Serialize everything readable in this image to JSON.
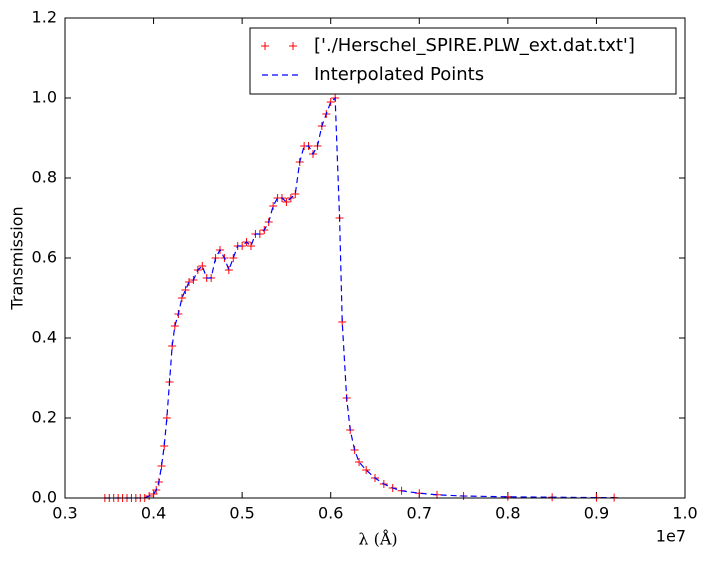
{
  "chart_data": {
    "type": "line",
    "xlabel": "λ (Å)",
    "ylabel": "Transmission",
    "x_offset_label": "1e7",
    "x": [
      0.345,
      0.35,
      0.355,
      0.36,
      0.365,
      0.37,
      0.375,
      0.38,
      0.385,
      0.39,
      0.395,
      0.4,
      0.403,
      0.406,
      0.409,
      0.412,
      0.415,
      0.418,
      0.421,
      0.424,
      0.428,
      0.432,
      0.436,
      0.44,
      0.445,
      0.45,
      0.455,
      0.46,
      0.465,
      0.47,
      0.475,
      0.48,
      0.485,
      0.49,
      0.495,
      0.5,
      0.505,
      0.51,
      0.515,
      0.52,
      0.525,
      0.53,
      0.535,
      0.54,
      0.545,
      0.55,
      0.555,
      0.56,
      0.565,
      0.57,
      0.575,
      0.58,
      0.585,
      0.59,
      0.595,
      0.6,
      0.605,
      0.61,
      0.613,
      0.618,
      0.622,
      0.627,
      0.632,
      0.64,
      0.65,
      0.66,
      0.67,
      0.68,
      0.7,
      0.72,
      0.75,
      0.8,
      0.85,
      0.9,
      0.92
    ],
    "series": [
      {
        "name": "['./Herschel_SPIRE.PLW_ext.dat.txt']",
        "color": "#ff0000",
        "marker": "+",
        "values": [
          0,
          0,
          0,
          0,
          0,
          0,
          0,
          0,
          0,
          0,
          0.005,
          0.01,
          0.02,
          0.04,
          0.08,
          0.13,
          0.2,
          0.29,
          0.38,
          0.43,
          0.46,
          0.5,
          0.52,
          0.54,
          0.545,
          0.57,
          0.58,
          0.55,
          0.55,
          0.6,
          0.62,
          0.6,
          0.57,
          0.6,
          0.63,
          0.63,
          0.64,
          0.63,
          0.66,
          0.66,
          0.67,
          0.69,
          0.73,
          0.75,
          0.75,
          0.74,
          0.75,
          0.76,
          0.84,
          0.88,
          0.88,
          0.86,
          0.88,
          0.93,
          0.96,
          0.99,
          1.0,
          0.7,
          0.44,
          0.25,
          0.17,
          0.12,
          0.09,
          0.07,
          0.05,
          0.035,
          0.025,
          0.018,
          0.012,
          0.008,
          0.005,
          0.003,
          0.002,
          0.001,
          0.001
        ]
      },
      {
        "name": "Interpolated Points",
        "color": "#0000ff",
        "marker": "dashed",
        "values": [
          0,
          0,
          0,
          0,
          0,
          0,
          0,
          0,
          0,
          0,
          0.005,
          0.01,
          0.02,
          0.04,
          0.08,
          0.13,
          0.2,
          0.29,
          0.38,
          0.43,
          0.46,
          0.5,
          0.52,
          0.54,
          0.545,
          0.57,
          0.58,
          0.55,
          0.55,
          0.6,
          0.62,
          0.6,
          0.57,
          0.6,
          0.63,
          0.63,
          0.64,
          0.63,
          0.66,
          0.66,
          0.67,
          0.69,
          0.73,
          0.75,
          0.75,
          0.74,
          0.75,
          0.76,
          0.84,
          0.88,
          0.88,
          0.86,
          0.88,
          0.93,
          0.96,
          0.99,
          1.0,
          0.7,
          0.44,
          0.25,
          0.17,
          0.12,
          0.09,
          0.07,
          0.05,
          0.035,
          0.025,
          0.018,
          0.012,
          0.008,
          0.005,
          0.003,
          0.002,
          0.001,
          0.001
        ]
      }
    ],
    "xlim": [
      0.3,
      1.0
    ],
    "xticks": [
      0.3,
      0.4,
      0.5,
      0.6,
      0.7,
      0.8,
      0.9,
      {
        "value": 1,
        "label": "1.0"
      }
    ],
    "ylim": [
      0,
      1.2
    ],
    "yticks": [
      {
        "value": 0,
        "label": "0.0"
      },
      0.2,
      0.4,
      0.6,
      0.8,
      {
        "value": 1,
        "label": "1.0"
      },
      1.2
    ],
    "legend": "upper right",
    "grid": false
  }
}
